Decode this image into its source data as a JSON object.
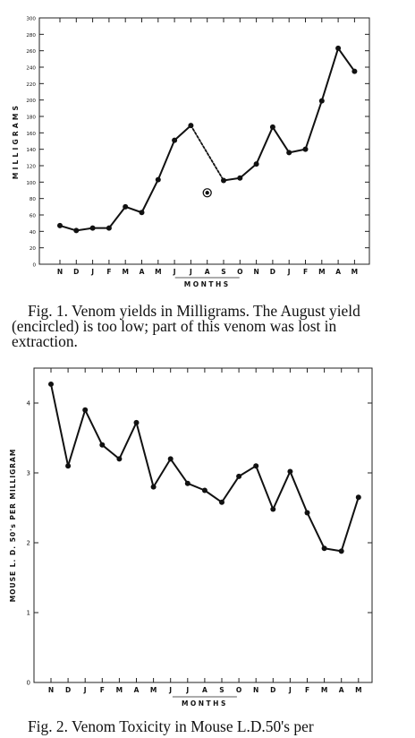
{
  "chart_data": [
    {
      "type": "line",
      "title": "",
      "xlabel": "MONTHS",
      "ylabel": "MILLIGRAMS",
      "categories": [
        "N",
        "D",
        "J",
        "F",
        "M",
        "A",
        "M",
        "J",
        "J",
        "A",
        "S",
        "O",
        "N",
        "D",
        "J",
        "F",
        "M",
        "A",
        "M"
      ],
      "yticks": [
        0,
        20,
        40,
        60,
        80,
        100,
        120,
        140,
        160,
        180,
        200,
        220,
        240,
        260,
        280,
        300
      ],
      "ylim": [
        0,
        300
      ],
      "series": [
        {
          "values": [
            47,
            41,
            44,
            44,
            70,
            63,
            103,
            151,
            169,
            null,
            102,
            105,
            122,
            167,
            136,
            140,
            199,
            263,
            235
          ]
        }
      ],
      "dashed_segment": {
        "from_index": 8,
        "to_index": 10
      },
      "encircled_point": {
        "index": 9,
        "value": 87
      },
      "grid": false
    },
    {
      "type": "line",
      "title": "",
      "xlabel": "MONTHS",
      "ylabel": "MOUSE L. D. 50's PER MILLIGRAM",
      "categories": [
        "N",
        "D",
        "J",
        "F",
        "M",
        "A",
        "M",
        "J",
        "J",
        "A",
        "S",
        "O",
        "N",
        "D",
        "J",
        "F",
        "M",
        "A",
        "M"
      ],
      "yticks": [
        0,
        1,
        2,
        3,
        4
      ],
      "ylim": [
        0,
        4.5
      ],
      "series": [
        {
          "values": [
            4.27,
            3.1,
            3.9,
            3.4,
            3.2,
            3.72,
            2.8,
            3.2,
            2.85,
            2.75,
            2.58,
            2.95,
            3.1,
            2.48,
            3.02,
            2.43,
            1.92,
            1.88,
            2.65
          ]
        }
      ],
      "grid": false
    }
  ],
  "captions": {
    "fig1": "Fig. 1. Venom yields in Milligrams. The August yield (encircled) is too low; part of this venom was lost in extraction.",
    "fig2": "Fig. 2. Venom Toxicity in Mouse L.D.50's per"
  }
}
